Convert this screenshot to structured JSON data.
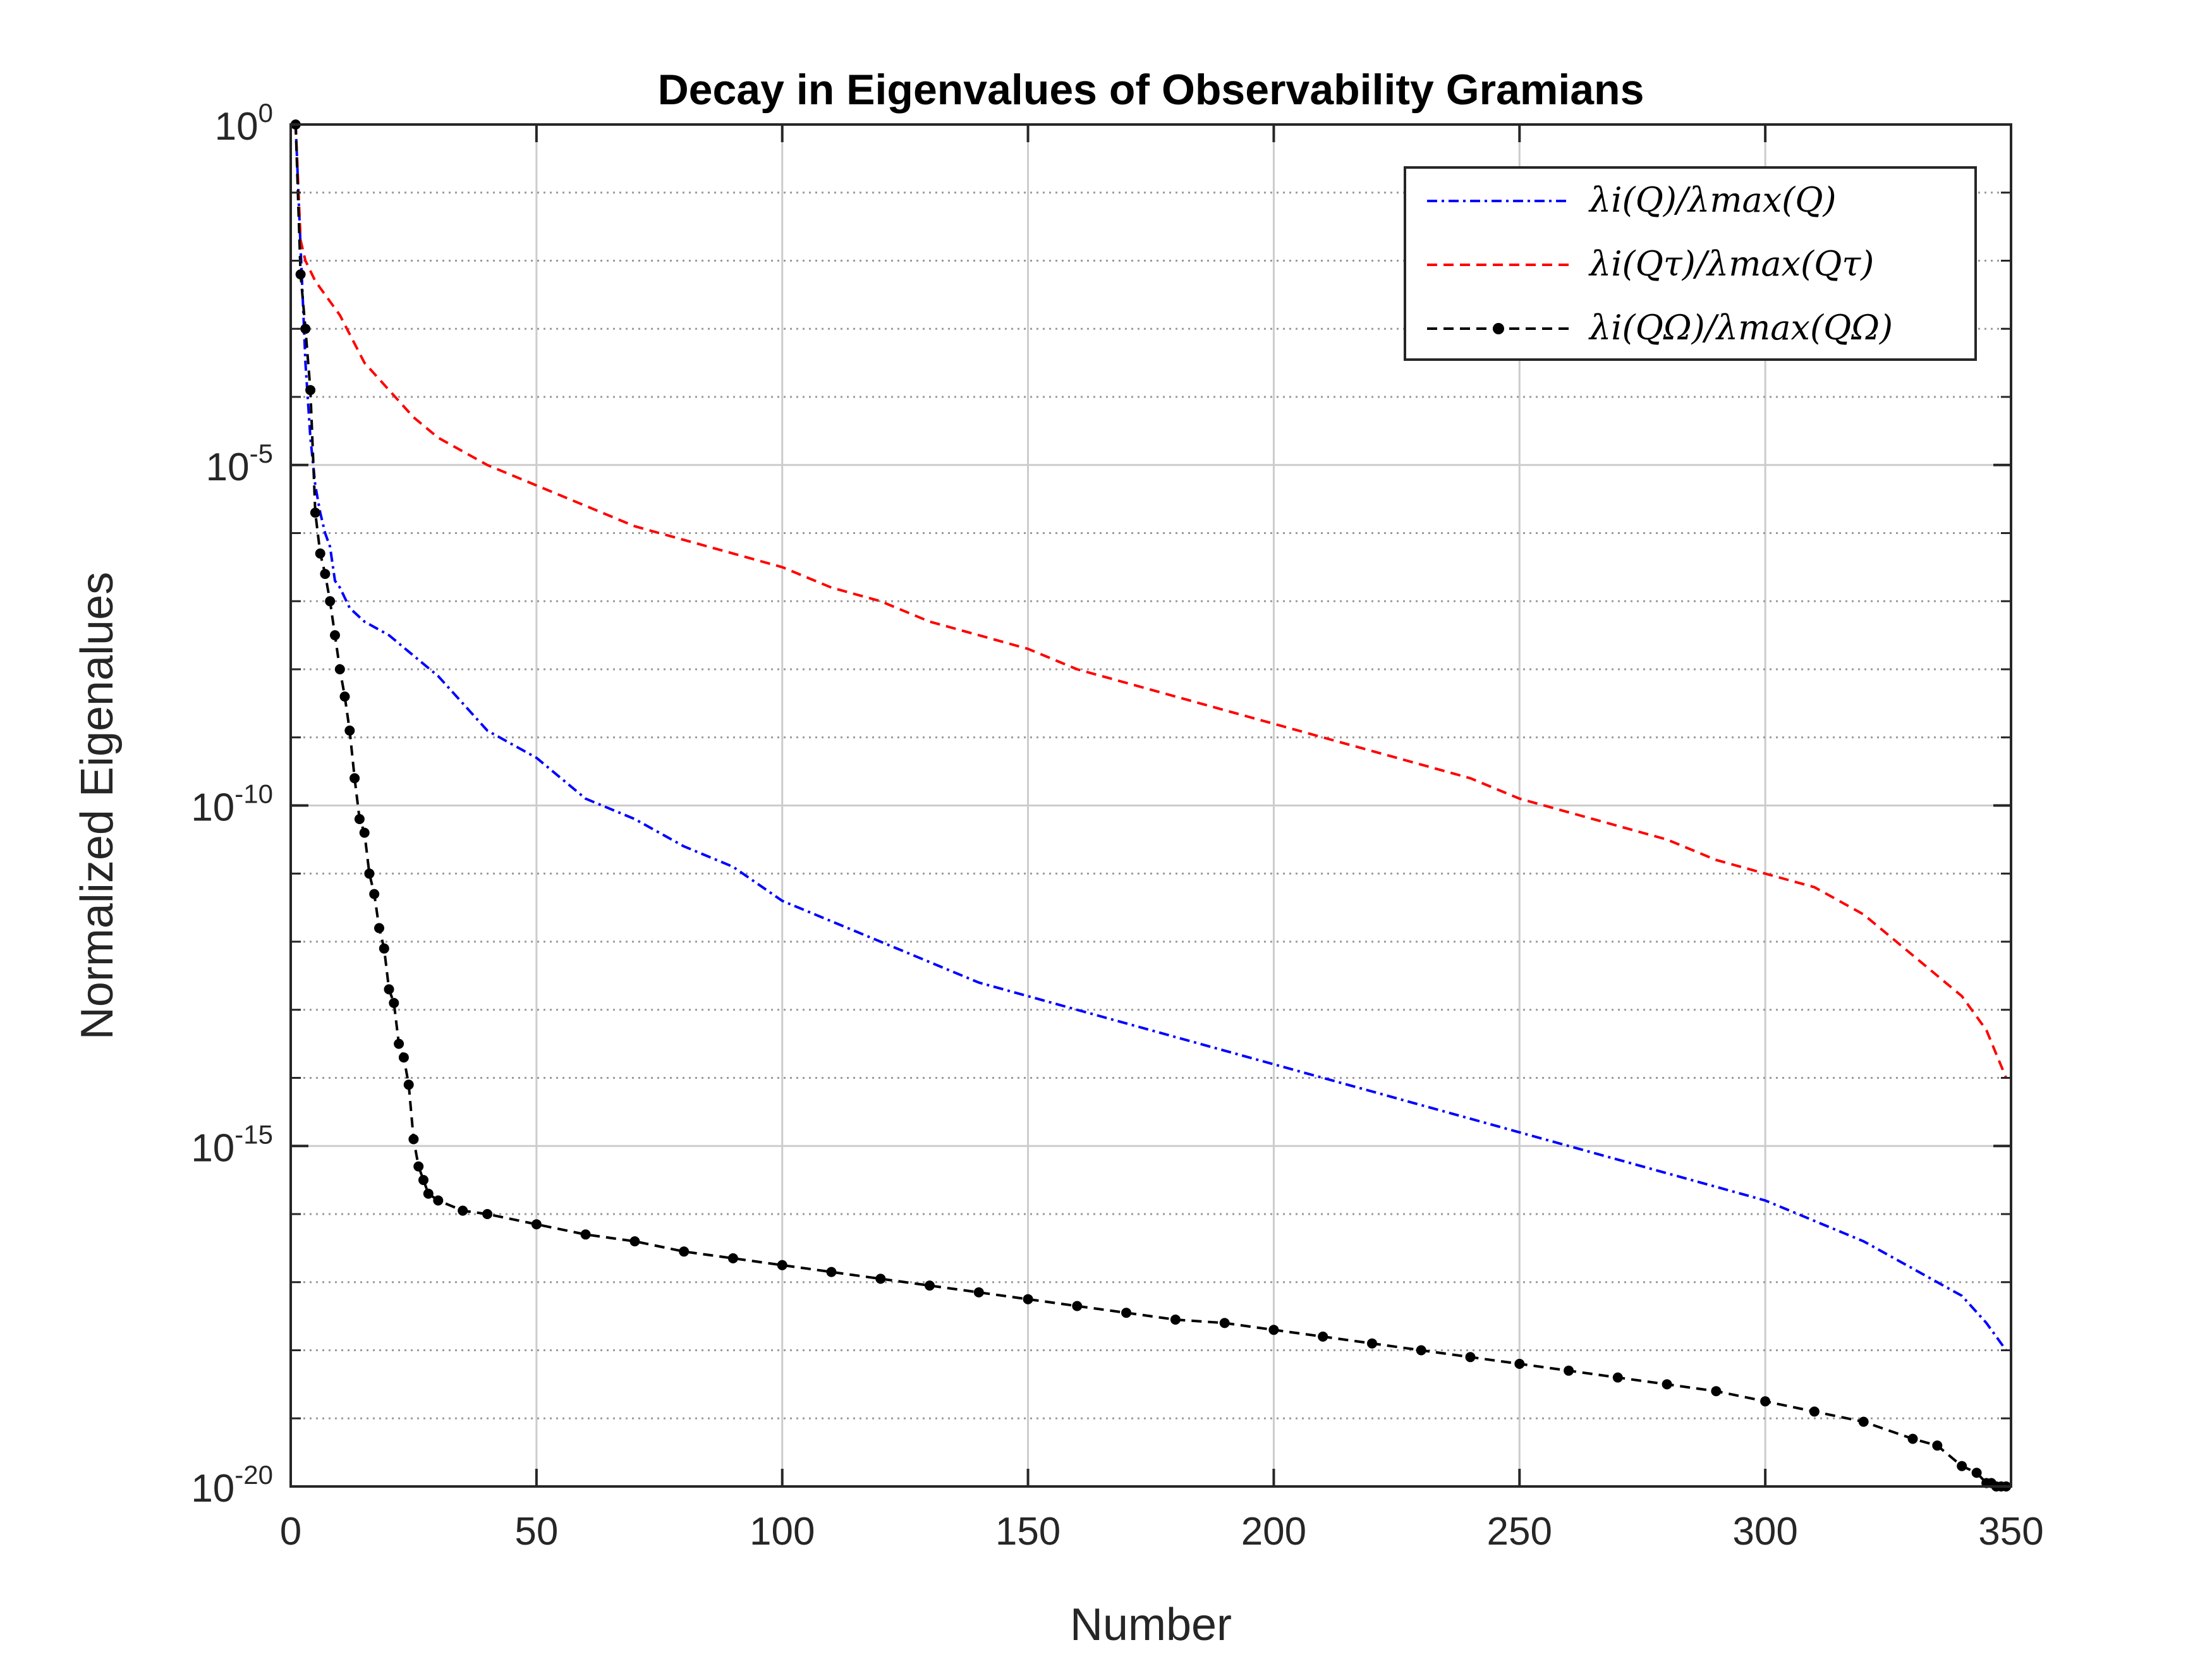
{
  "chart_data": {
    "type": "line",
    "title": "Decay in  Eigenvalues of Observability Gramians",
    "xlabel": "Number",
    "ylabel": "Normalized Eigenalues",
    "xlim": [
      0,
      350
    ],
    "ylim_log10": [
      -20,
      0
    ],
    "y_scale": "log",
    "grid": true,
    "legend_position": "top-right",
    "x_ticks": [
      "0",
      "50",
      "100",
      "150",
      "200",
      "250",
      "300",
      "350"
    ],
    "y_ticks": [
      {
        "base": "10",
        "exp": "0"
      },
      {
        "base": "10",
        "exp": "-5"
      },
      {
        "base": "10",
        "exp": "-10"
      },
      {
        "base": "10",
        "exp": "-15"
      },
      {
        "base": "10",
        "exp": "-20"
      }
    ],
    "series": [
      {
        "name": "λi(Q)/λmax(Q)",
        "color": "#0000ff",
        "style": "dashdot",
        "x": [
          1,
          2,
          3,
          4,
          5,
          6,
          7,
          8,
          9,
          10,
          12,
          15,
          20,
          25,
          30,
          35,
          40,
          50,
          60,
          70,
          80,
          90,
          100,
          110,
          120,
          130,
          140,
          150,
          160,
          170,
          180,
          190,
          200,
          210,
          220,
          230,
          240,
          250,
          260,
          270,
          280,
          290,
          300,
          310,
          320,
          330,
          335,
          340,
          345,
          349
        ],
        "log10_y": [
          0,
          -1.8,
          -3.5,
          -4.6,
          -5.3,
          -5.7,
          -6.0,
          -6.2,
          -6.7,
          -6.8,
          -7.1,
          -7.3,
          -7.5,
          -7.8,
          -8.1,
          -8.5,
          -8.9,
          -9.3,
          -9.9,
          -10.2,
          -10.6,
          -10.9,
          -11.4,
          -11.7,
          -12.0,
          -12.3,
          -12.6,
          -12.8,
          -13.0,
          -13.2,
          -13.4,
          -13.6,
          -13.8,
          -14.0,
          -14.2,
          -14.4,
          -14.6,
          -14.8,
          -15.0,
          -15.2,
          -15.4,
          -15.6,
          -15.8,
          -16.1,
          -16.4,
          -16.8,
          -17.0,
          -17.2,
          -17.6,
          -18.0
        ]
      },
      {
        "name": "λi(Qτ)/λmax(Qτ)",
        "color": "#ff0000",
        "style": "dashed",
        "x": [
          1,
          2,
          3,
          5,
          10,
          15,
          20,
          25,
          30,
          40,
          50,
          60,
          70,
          80,
          90,
          100,
          110,
          120,
          130,
          140,
          150,
          160,
          170,
          180,
          190,
          200,
          210,
          220,
          230,
          240,
          250,
          260,
          270,
          280,
          290,
          300,
          310,
          320,
          330,
          340,
          345,
          349
        ],
        "log10_y": [
          0,
          -1.7,
          -2.0,
          -2.3,
          -2.8,
          -3.5,
          -3.9,
          -4.3,
          -4.6,
          -5.0,
          -5.3,
          -5.6,
          -5.9,
          -6.1,
          -6.3,
          -6.5,
          -6.8,
          -7.0,
          -7.3,
          -7.5,
          -7.7,
          -8.0,
          -8.2,
          -8.4,
          -8.6,
          -8.8,
          -9.0,
          -9.2,
          -9.4,
          -9.6,
          -9.9,
          -10.1,
          -10.3,
          -10.5,
          -10.8,
          -11.0,
          -11.2,
          -11.6,
          -12.2,
          -12.8,
          -13.3,
          -14.0
        ]
      },
      {
        "name": "λi(QΩ)/λmax(QΩ)",
        "color": "#000000",
        "style": "dashed-dot-markers",
        "x": [
          1,
          2,
          3,
          4,
          5,
          6,
          7,
          8,
          9,
          10,
          11,
          12,
          13,
          14,
          15,
          16,
          17,
          18,
          19,
          20,
          21,
          22,
          23,
          24,
          25,
          26,
          27,
          28,
          30,
          35,
          40,
          50,
          60,
          70,
          80,
          90,
          100,
          110,
          120,
          130,
          140,
          150,
          160,
          170,
          180,
          190,
          200,
          210,
          220,
          230,
          240,
          250,
          260,
          270,
          280,
          290,
          300,
          310,
          320,
          330,
          335,
          340,
          343,
          345,
          346,
          347,
          348,
          349
        ],
        "log10_y": [
          0,
          -2.2,
          -3.0,
          -3.9,
          -5.7,
          -6.3,
          -6.6,
          -7.0,
          -7.5,
          -8.0,
          -8.4,
          -8.9,
          -9.6,
          -10.2,
          -10.4,
          -11.0,
          -11.3,
          -11.8,
          -12.1,
          -12.7,
          -12.9,
          -13.5,
          -13.7,
          -14.1,
          -14.9,
          -15.3,
          -15.5,
          -15.7,
          -15.8,
          -15.95,
          -16.0,
          -16.15,
          -16.3,
          -16.4,
          -16.55,
          -16.65,
          -16.75,
          -16.85,
          -16.95,
          -17.05,
          -17.15,
          -17.25,
          -17.35,
          -17.45,
          -17.55,
          -17.6,
          -17.7,
          -17.8,
          -17.9,
          -18.0,
          -18.1,
          -18.2,
          -18.3,
          -18.4,
          -18.5,
          -18.6,
          -18.75,
          -18.9,
          -19.05,
          -19.3,
          -19.4,
          -19.7,
          -19.8,
          -19.95,
          -19.95,
          -20.0,
          -20.0,
          -20.0
        ]
      }
    ]
  }
}
